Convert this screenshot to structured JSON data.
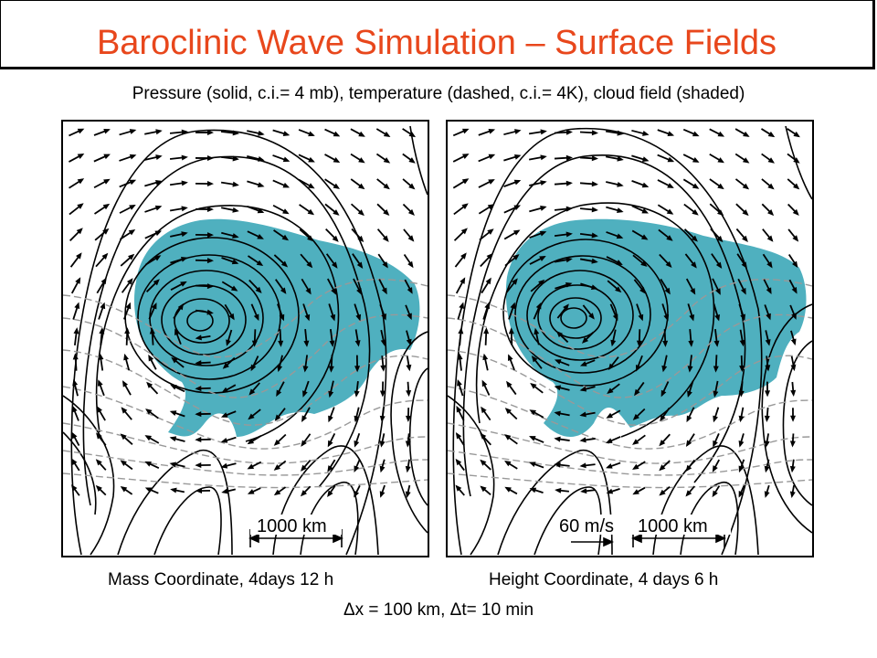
{
  "title": "Baroclinic Wave Simulation – Surface Fields",
  "subtitle": "Pressure (solid, c.i.= 4 mb), temperature (dashed, c.i.= 4K), cloud field (shaded)",
  "panels": [
    {
      "caption": "Mass Coordinate, 4days 12 h",
      "scale_label": "1000 km"
    },
    {
      "caption": "Height Coordinate, 4 days 6 h",
      "scale_label": "1000 km",
      "vector_label": "60 m/s"
    }
  ],
  "footer_note": "Δx = 100 km, Δt= 10 min",
  "colors": {
    "title": "#e8471c",
    "cloud_shading": "#4fb0bf",
    "dashed_contours": "#999999"
  }
}
